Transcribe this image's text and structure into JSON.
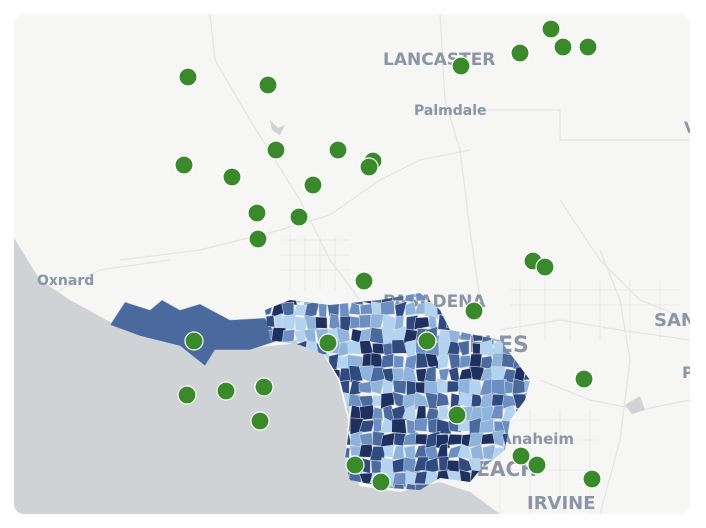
{
  "map": {
    "place_labels": {
      "lancaster": "LANCASTER",
      "palmdale": "Palmdale",
      "oxnard": "Oxnard",
      "pasadena": "PASADENA",
      "los_angeles": "LOS ANGELES",
      "long_beach": "LONG BEACH",
      "anaheim": "Anaheim",
      "irvine": "IRVINE",
      "santa_ana_partial": "SAN",
      "right_edge_p": "P",
      "right_edge_v": "V"
    },
    "colors": {
      "land": "#f6f6f5",
      "ocean": "#cfd3d6",
      "marker": "#3a8a2c",
      "marker_stroke": "#ffffff",
      "choropleth_scale": [
        "#b3d4f0",
        "#8fb4dc",
        "#6b8fc2",
        "#4a6a9e",
        "#2e4a7f",
        "#1e305f"
      ]
    },
    "layers": [
      "basemap",
      "choropleth",
      "point-markers"
    ]
  }
}
